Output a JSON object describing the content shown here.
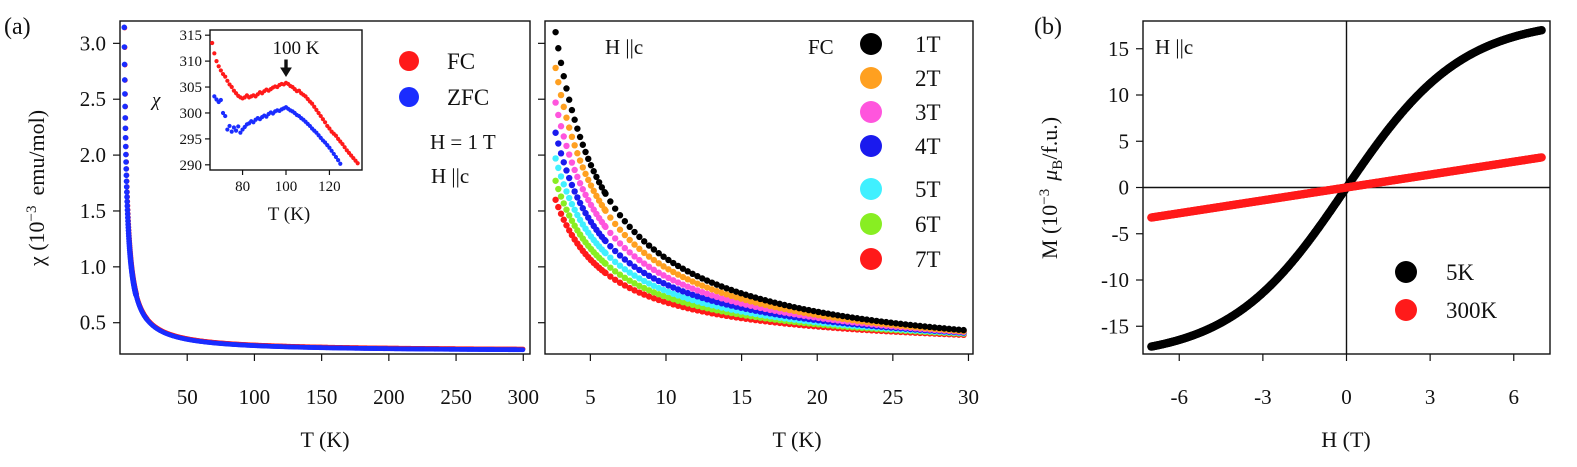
{
  "figure": {
    "panel_a_label": "(a)",
    "panel_b_label": "(b)"
  },
  "chart_data": [
    {
      "id": "a_left",
      "type": "scatter",
      "xlabel": "T (K)",
      "ylabel_main": "χ (10",
      "ylabel_exp": "−3",
      "ylabel_unit": "emu/mol)",
      "xlim": [
        0,
        305
      ],
      "ylim": [
        0.22,
        3.2
      ],
      "xticks": [
        50,
        100,
        150,
        200,
        250,
        300
      ],
      "yticks": [
        0.5,
        1.0,
        1.5,
        2.0,
        2.5,
        3.0
      ],
      "ytick_labels": [
        "0.5",
        "1.0",
        "1.5",
        "2.0",
        "2.5",
        "3.0"
      ],
      "model": {
        "form": "a + b/(T - c)",
        "a": 0.24,
        "b": 5.4,
        "c": 1.3,
        "start": 2.8
      },
      "series": [
        {
          "name": "FC",
          "color": "#ff1a1a"
        },
        {
          "name": "ZFC",
          "color": "#1a2cff"
        }
      ],
      "annotations": {
        "field": "H = 1 T",
        "direction": "H ||c"
      },
      "inset": {
        "xlabel": "T (K)",
        "ylabel": "χ",
        "xlim": [
          65,
          135
        ],
        "ylim": [
          289,
          316
        ],
        "xticks": [
          80,
          100,
          120
        ],
        "yticks": [
          290,
          295,
          300,
          305,
          310,
          315
        ],
        "arrow_label": "100 K",
        "arrow_x": 100,
        "fc_points": [
          [
            66,
            313.5
          ],
          [
            67,
            311.5
          ],
          [
            68,
            310
          ],
          [
            69,
            309
          ],
          [
            70,
            308.2
          ],
          [
            71,
            307.5
          ],
          [
            72,
            307
          ],
          [
            73,
            306.2
          ],
          [
            74,
            305.5
          ],
          [
            75,
            305
          ],
          [
            76,
            304.3
          ],
          [
            77,
            303.8
          ],
          [
            78,
            303.3
          ],
          [
            79,
            303
          ],
          [
            80,
            302.8
          ],
          [
            81,
            303
          ],
          [
            82,
            303.4
          ],
          [
            83,
            303
          ],
          [
            84,
            303.2
          ],
          [
            85,
            303.4
          ],
          [
            86,
            303.2
          ],
          [
            87,
            303.6
          ],
          [
            88,
            304
          ],
          [
            89,
            303.8
          ],
          [
            90,
            304.2
          ],
          [
            91,
            304.5
          ],
          [
            92,
            304.3
          ],
          [
            93,
            304.6
          ],
          [
            94,
            304.9
          ],
          [
            95,
            305.1
          ],
          [
            96,
            305
          ],
          [
            97,
            305.4
          ],
          [
            98,
            305.6
          ],
          [
            99,
            305.5
          ],
          [
            100,
            305.8
          ],
          [
            101,
            305.6
          ],
          [
            102,
            305.2
          ],
          [
            103,
            305
          ],
          [
            104,
            304.6
          ],
          [
            105,
            304.2
          ],
          [
            106,
            304.3
          ],
          [
            107,
            303.8
          ],
          [
            108,
            303.5
          ],
          [
            109,
            303.2
          ],
          [
            110,
            302.7
          ],
          [
            111,
            302.2
          ],
          [
            112,
            301.8
          ],
          [
            113,
            301.2
          ],
          [
            114,
            300.6
          ],
          [
            115,
            300
          ],
          [
            116,
            299.4
          ],
          [
            117,
            298.8
          ],
          [
            118,
            298.2
          ],
          [
            119,
            297.5
          ],
          [
            120,
            297
          ],
          [
            121,
            296.4
          ],
          [
            122,
            296
          ],
          [
            123,
            295.6
          ],
          [
            124,
            295
          ],
          [
            125,
            294.5
          ],
          [
            126,
            294
          ],
          [
            127,
            293.4
          ],
          [
            128,
            292.8
          ],
          [
            129,
            292.3
          ],
          [
            130,
            291.8
          ],
          [
            131,
            291.3
          ],
          [
            132,
            290.8
          ],
          [
            133,
            290.3
          ]
        ],
        "zfc_points": [
          [
            67,
            303.2
          ],
          [
            68,
            302.6
          ],
          [
            69,
            302.1
          ],
          [
            70,
            302.5
          ],
          [
            71,
            300
          ],
          [
            72,
            299.4
          ],
          [
            73,
            296.8
          ],
          [
            74,
            297.5
          ],
          [
            75,
            296.4
          ],
          [
            76,
            297.2
          ],
          [
            77,
            296.6
          ],
          [
            78,
            297.4
          ],
          [
            79,
            296.2
          ],
          [
            80,
            296.8
          ],
          [
            81,
            297.3
          ],
          [
            82,
            297.8
          ],
          [
            83,
            298
          ],
          [
            84,
            298.4
          ],
          [
            85,
            298.2
          ],
          [
            86,
            298.7
          ],
          [
            87,
            299
          ],
          [
            88,
            298.8
          ],
          [
            89,
            299.2
          ],
          [
            90,
            299.5
          ],
          [
            91,
            299.3
          ],
          [
            92,
            299.8
          ],
          [
            93,
            300.1
          ],
          [
            94,
            299.9
          ],
          [
            95,
            300.3
          ],
          [
            96,
            300.5
          ],
          [
            97,
            300.4
          ],
          [
            98,
            300.7
          ],
          [
            99,
            300.9
          ],
          [
            100,
            301.1
          ],
          [
            101,
            300.8
          ],
          [
            102,
            300.5
          ],
          [
            103,
            300.3
          ],
          [
            104,
            300
          ],
          [
            105,
            299.6
          ],
          [
            106,
            299.4
          ],
          [
            107,
            299
          ],
          [
            108,
            298.7
          ],
          [
            109,
            298.3
          ],
          [
            110,
            297.9
          ],
          [
            111,
            297.5
          ],
          [
            112,
            297
          ],
          [
            113,
            296.6
          ],
          [
            114,
            296.2
          ],
          [
            115,
            295.7
          ],
          [
            116,
            295.2
          ],
          [
            117,
            294.7
          ],
          [
            118,
            294.3
          ],
          [
            119,
            293.8
          ],
          [
            120,
            293.3
          ],
          [
            121,
            292.7
          ],
          [
            122,
            292.1
          ],
          [
            123,
            291.5
          ],
          [
            124,
            290.9
          ],
          [
            125,
            290.2
          ]
        ]
      }
    },
    {
      "id": "a_right",
      "type": "scatter",
      "xlabel": "T (K)",
      "xlim": [
        2,
        30.3
      ],
      "ylim": [
        0.22,
        3.2
      ],
      "xticks": [
        5,
        10,
        15,
        20,
        25,
        30
      ],
      "yticks": [
        0.5,
        1.0,
        1.5,
        2.0,
        2.5,
        3.0
      ],
      "legend_title": "FC",
      "direction": "H ||c",
      "series": [
        {
          "name": "1T",
          "color": "#000000",
          "chi_at_2_7K": 3.1,
          "chi_at_30K": 0.43
        },
        {
          "name": "2T",
          "color": "#ffa020",
          "chi_at_2_7K": 2.78,
          "chi_at_30K": 0.42
        },
        {
          "name": "3T",
          "color": "#ff55dd",
          "chi_at_2_7K": 2.47,
          "chi_at_30K": 0.415
        },
        {
          "name": "4T",
          "color": "#1a1aee",
          "chi_at_2_7K": 2.2,
          "chi_at_30K": 0.41
        },
        {
          "name": "5T",
          "color": "#40f0ff",
          "chi_at_2_7K": 1.97,
          "chi_at_30K": 0.405
        },
        {
          "name": "6T",
          "color": "#88ee22",
          "chi_at_2_7K": 1.77,
          "chi_at_30K": 0.4
        },
        {
          "name": "7T",
          "color": "#ff1a1a",
          "chi_at_2_7K": 1.6,
          "chi_at_30K": 0.39
        }
      ]
    },
    {
      "id": "b",
      "type": "scatter",
      "xlabel": "H (T)",
      "ylabel_main": "M  (10",
      "ylabel_exp": "−3",
      "ylabel_mu": "μ",
      "ylabel_sub": "B",
      "ylabel_unit": "/f.u.)",
      "xlim": [
        -7.3,
        7.3
      ],
      "ylim": [
        -18,
        18
      ],
      "xticks": [
        -6,
        -3,
        0,
        3,
        6
      ],
      "xtick_labels": [
        "-6",
        "-3",
        "0",
        "3",
        "6"
      ],
      "yticks": [
        -15,
        -10,
        -5,
        0,
        5,
        10,
        15
      ],
      "ytick_labels": [
        "-15",
        "-10",
        "-5",
        "0",
        "5",
        "10",
        "15"
      ],
      "direction": "H ||c",
      "series": [
        {
          "name": "5K",
          "color": "#000000",
          "shape": "saturating",
          "m_at_7T": 17.0,
          "m_at_minus_7T": -17.2
        },
        {
          "name": "300K",
          "color": "#ff1a1a",
          "shape": "linear",
          "m_at_7T": 3.25,
          "m_at_minus_7T": -3.25
        }
      ]
    }
  ]
}
